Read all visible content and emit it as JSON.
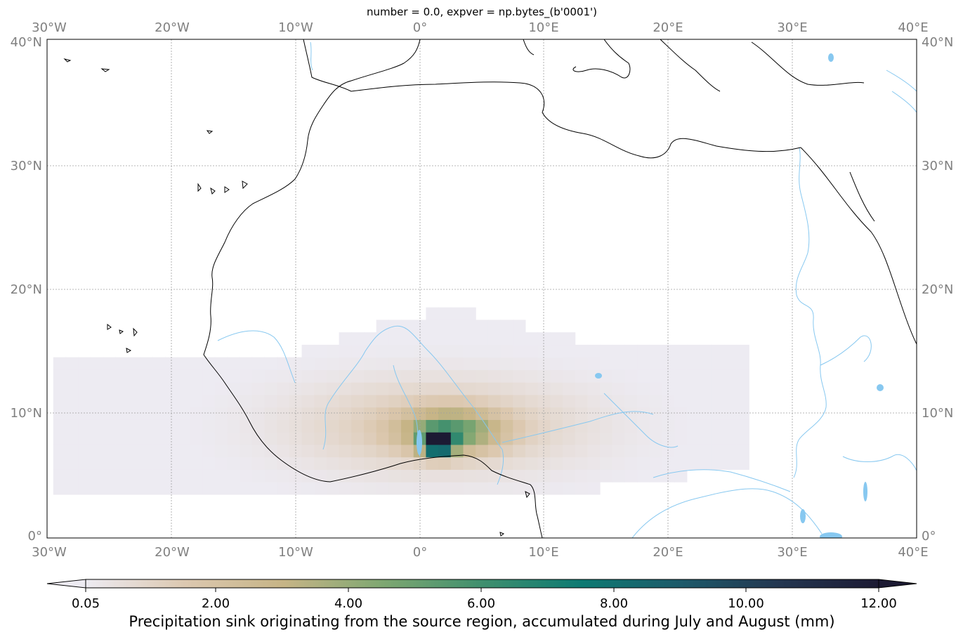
{
  "title": "number = 0.0, expver = np.bytes_(b'0001')",
  "axes": {
    "lon_ticks": [
      {
        "value": -30,
        "label": "30°W"
      },
      {
        "value": -20,
        "label": "20°W"
      },
      {
        "value": -10,
        "label": "10°W"
      },
      {
        "value": 0,
        "label": "0°"
      },
      {
        "value": 10,
        "label": "10°E"
      },
      {
        "value": 20,
        "label": "20°E"
      },
      {
        "value": 30,
        "label": "30°E"
      },
      {
        "value": 40,
        "label": "40°E"
      }
    ],
    "lat_ticks": [
      {
        "value": 40,
        "label": "40°N"
      },
      {
        "value": 30,
        "label": "30°N"
      },
      {
        "value": 20,
        "label": "20°N"
      },
      {
        "value": 10,
        "label": "10°N"
      },
      {
        "value": 0,
        "label": "0°"
      }
    ],
    "lon_range": [
      -30,
      40
    ],
    "lat_range": [
      0,
      40
    ],
    "gridlines": true
  },
  "colorbar": {
    "label": "Precipitation sink originating from the source region, accumulated during July and August (mm)",
    "range": [
      0.05,
      12.0
    ],
    "extend": "both",
    "ticks": [
      {
        "value": 0.05,
        "label": "0.05"
      },
      {
        "value": 2,
        "label": "2.00"
      },
      {
        "value": 4,
        "label": "4.00"
      },
      {
        "value": 6,
        "label": "6.00"
      },
      {
        "value": 8,
        "label": "8.00"
      },
      {
        "value": 10,
        "label": "10.00"
      },
      {
        "value": 12,
        "label": "12.00"
      }
    ],
    "colormap": [
      "#edebf2",
      "#dcc8b0",
      "#c6b486",
      "#7ea771",
      "#3f8f6e",
      "#0d7a72",
      "#1d5a6a",
      "#233650",
      "#1c1a33"
    ]
  },
  "colors": {
    "coastline": "#000000",
    "rivers_lakes": "#87c8f0",
    "gridlines": "#a0a0a0",
    "tick_labels": "#808080"
  },
  "field": {
    "description_values": "precipitation sink in mm",
    "max_center": {
      "lon": 1.5,
      "lat": 7.5,
      "value": 12.0
    },
    "blobs": [
      {
        "lon": 1.5,
        "lat": 7.6,
        "amp": 11.5,
        "sx": 0.8,
        "sy": 0.6
      },
      {
        "lon": 2.5,
        "lat": 8.6,
        "amp": 4.0,
        "sx": 2.6,
        "sy": 1.1
      },
      {
        "lon": 1.5,
        "lat": 9.0,
        "amp": 1.6,
        "sx": 8.0,
        "sy": 2.6
      }
    ],
    "extent_lon": [
      -29.5,
      26
    ],
    "extent_lat": [
      3.5,
      19
    ]
  }
}
